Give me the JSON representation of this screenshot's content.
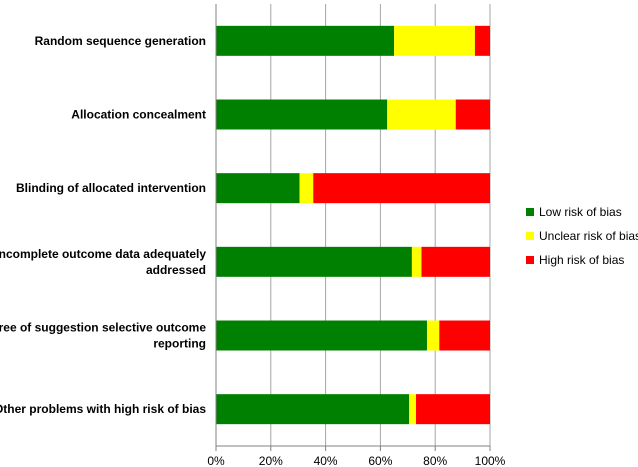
{
  "chart_data": {
    "type": "bar",
    "orientation": "horizontal",
    "stacked": true,
    "categories": [
      [
        "Random sequence generation"
      ],
      [
        "Allocation concealment"
      ],
      [
        "Blinding of allocated intervention"
      ],
      [
        "Incomplete outcome data adequately",
        "addressed"
      ],
      [
        "Free of suggestion selective outcome",
        "reporting"
      ],
      [
        "Other problems with high risk of bias"
      ]
    ],
    "series": [
      {
        "name": "Low risk of bias",
        "color": "#008000",
        "values": [
          65,
          62.5,
          30.5,
          71.5,
          77,
          70.5
        ]
      },
      {
        "name": "Unclear risk of bias",
        "color": "#ffff00",
        "values": [
          29.5,
          25,
          5,
          3.5,
          4.5,
          2.5
        ]
      },
      {
        "name": "High risk of bias",
        "color": "#ff0000",
        "values": [
          5.5,
          12.5,
          64.5,
          25,
          18.5,
          27
        ]
      }
    ],
    "xlim": [
      0,
      100
    ],
    "xticks": [
      "0%",
      "20%",
      "40%",
      "60%",
      "80%",
      "100%"
    ],
    "grid": true,
    "legend": "right"
  }
}
